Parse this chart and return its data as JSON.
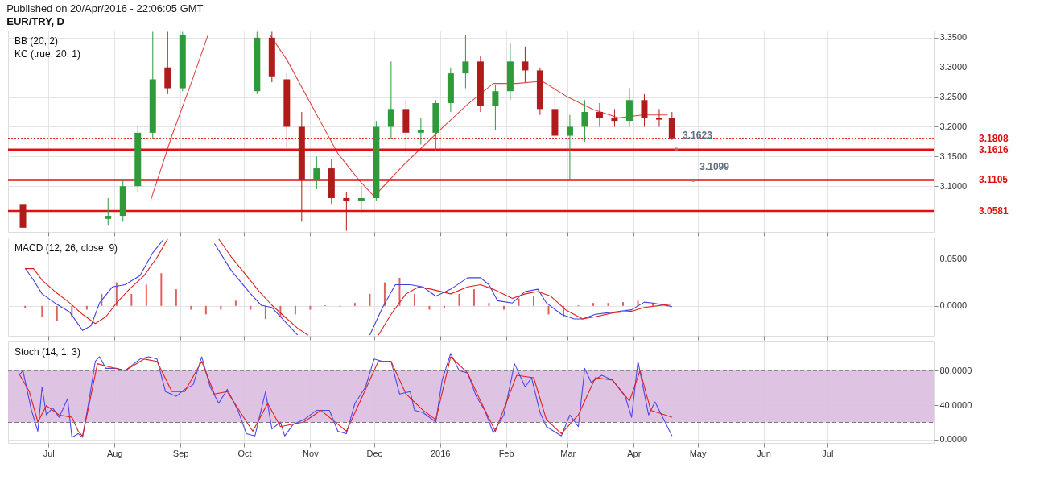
{
  "chart_data": [
    {
      "type": "candlestick",
      "title": "EUR/TRY, D",
      "subtitle": "Published on 20/Apr/2016 - 22:06:05 GMT",
      "annotations": [
        "BB (20, 2)",
        "KC (true, 20, 1)",
        {
          "text": "3.1623",
          "x": "2016-04-21",
          "y": 3.1623
        },
        {
          "text": "3.1099",
          "x": "2016-04-29",
          "y": 3.1099
        }
      ],
      "x": [
        "2015-06-19",
        "2015-07-29",
        "2015-08-05",
        "2015-08-12",
        "2015-08-19",
        "2015-08-26",
        "2015-09-02",
        "2015-10-07",
        "2015-10-14",
        "2015-10-21",
        "2015-10-28",
        "2015-11-04",
        "2015-11-11",
        "2015-11-18",
        "2015-11-25",
        "2015-12-02",
        "2015-12-09",
        "2015-12-16",
        "2015-12-23",
        "2015-12-30",
        "2016-01-06",
        "2016-01-13",
        "2016-01-20",
        "2016-01-27",
        "2016-02-03",
        "2016-02-10",
        "2016-02-17",
        "2016-02-24",
        "2016-03-02",
        "2016-03-09",
        "2016-03-16",
        "2016-03-23",
        "2016-03-30",
        "2016-04-06",
        "2016-04-13",
        "2016-04-19"
      ],
      "ohlc": [
        [
          3.07,
          3.085,
          3.025,
          3.03
        ],
        [
          3.045,
          3.08,
          3.035,
          3.05
        ],
        [
          3.05,
          3.11,
          3.04,
          3.1
        ],
        [
          3.1,
          3.2,
          3.09,
          3.19
        ],
        [
          3.19,
          3.36,
          3.18,
          3.28
        ],
        [
          3.3,
          3.36,
          3.255,
          3.265
        ],
        [
          3.265,
          3.36,
          3.26,
          3.355
        ],
        [
          3.26,
          3.36,
          3.255,
          3.35
        ],
        [
          3.35,
          3.36,
          3.275,
          3.285
        ],
        [
          3.28,
          3.29,
          3.165,
          3.2
        ],
        [
          3.2,
          3.225,
          3.04,
          3.11
        ],
        [
          3.11,
          3.15,
          3.095,
          3.13
        ],
        [
          3.13,
          3.145,
          3.07,
          3.08
        ],
        [
          3.08,
          3.09,
          3.025,
          3.075
        ],
        [
          3.075,
          3.1,
          3.055,
          3.08
        ],
        [
          3.08,
          3.21,
          3.075,
          3.2
        ],
        [
          3.2,
          3.31,
          3.18,
          3.23
        ],
        [
          3.23,
          3.245,
          3.155,
          3.19
        ],
        [
          3.19,
          3.215,
          3.17,
          3.195
        ],
        [
          3.19,
          3.245,
          3.16,
          3.24
        ],
        [
          3.24,
          3.3,
          3.225,
          3.29
        ],
        [
          3.29,
          3.355,
          3.265,
          3.31
        ],
        [
          3.31,
          3.32,
          3.225,
          3.235
        ],
        [
          3.235,
          3.27,
          3.195,
          3.26
        ],
        [
          3.26,
          3.34,
          3.245,
          3.31
        ],
        [
          3.31,
          3.335,
          3.275,
          3.295
        ],
        [
          3.295,
          3.3,
          3.22,
          3.23
        ],
        [
          3.23,
          3.27,
          3.17,
          3.185
        ],
        [
          3.185,
          3.22,
          3.11,
          3.2
        ],
        [
          3.2,
          3.245,
          3.175,
          3.225
        ],
        [
          3.225,
          3.24,
          3.2,
          3.215
        ],
        [
          3.215,
          3.23,
          3.2,
          3.21
        ],
        [
          3.21,
          3.265,
          3.2,
          3.245
        ],
        [
          3.245,
          3.255,
          3.2,
          3.215
        ],
        [
          3.215,
          3.23,
          3.2,
          3.212
        ],
        [
          3.215,
          3.225,
          3.178,
          3.1808
        ]
      ],
      "colors": [
        "#b01c1c",
        "#2e9a3a",
        "#2e9a3a",
        "#2e9a3a",
        "#2e9a3a",
        "#b01c1c",
        "#2e9a3a",
        "#2e9a3a",
        "#b01c1c",
        "#b01c1c",
        "#b01c1c",
        "#2e9a3a",
        "#b01c1c",
        "#b01c1c",
        "#2e9a3a",
        "#2e9a3a",
        "#2e9a3a",
        "#b01c1c",
        "#2e9a3a",
        "#2e9a3a",
        "#2e9a3a",
        "#2e9a3a",
        "#b01c1c",
        "#2e9a3a",
        "#2e9a3a",
        "#b01c1c",
        "#b01c1c",
        "#b01c1c",
        "#2e9a3a",
        "#2e9a3a",
        "#b01c1c",
        "#b01c1c",
        "#2e9a3a",
        "#b01c1c",
        "#b01c1c",
        "#b01c1c"
      ],
      "series": [
        {
          "type": "line",
          "color": "#e04848",
          "x": [
            "2015-08-18",
            "2015-08-28",
            "2015-09-06",
            "2015-09-14",
            "2015-09-30",
            "2015-10-13",
            "2015-10-21",
            "2015-11-02",
            "2015-11-14",
            "2015-11-24",
            "2015-12-01",
            "2015-12-15",
            "2016-01-02",
            "2016-01-14",
            "2016-01-26",
            "2016-02-06",
            "2016-02-18",
            "2016-03-01",
            "2016-03-13",
            "2016-03-25",
            "2016-04-05",
            "2016-04-17"
          ],
          "values": [
            3.076,
            3.185,
            3.273,
            3.355,
            null,
            3.355,
            3.313,
            3.234,
            3.155,
            3.11,
            3.083,
            3.136,
            3.198,
            3.238,
            3.273,
            3.273,
            3.277,
            3.25,
            3.229,
            3.215,
            3.22,
            3.22
          ]
        }
      ],
      "ref_lines": [
        {
          "axis": "y",
          "value": 3.1808,
          "label": "3.1808",
          "color": "#e01010",
          "line_style": "dotted"
        },
        {
          "axis": "y",
          "value": 3.1616,
          "label": "3.1616",
          "color": "#e01010",
          "line_style": "solid"
        },
        {
          "axis": "y",
          "value": 3.1105,
          "label": "3.1105",
          "color": "#e01010",
          "line_style": "solid"
        },
        {
          "axis": "y",
          "value": 3.0581,
          "label": "3.0581",
          "color": "#e01010",
          "line_style": "solid"
        }
      ],
      "xlim": [
        "2015-06-12",
        "2016-08-20"
      ],
      "xticks": [
        {
          "value": "2015-07-01",
          "label": null
        },
        {
          "value": "2015-08-01",
          "label": null
        },
        {
          "value": "2015-09-01",
          "label": null
        },
        {
          "value": "2015-10-01",
          "label": null
        },
        {
          "value": "2015-11-01",
          "label": null
        },
        {
          "value": "2015-12-01",
          "label": null
        },
        {
          "value": "2016-01-01",
          "label": null
        },
        {
          "value": "2016-02-01",
          "label": null
        },
        {
          "value": "2016-03-01",
          "label": null
        },
        {
          "value": "2016-04-01",
          "label": null
        },
        {
          "value": "2016-05-01",
          "label": null
        },
        {
          "value": "2016-06-01",
          "label": null
        },
        {
          "value": "2016-07-01",
          "label": null
        }
      ],
      "ylim": [
        3.023,
        3.362
      ],
      "yticks": [
        {
          "value": 3.1,
          "label": "3.1000"
        },
        {
          "value": 3.15,
          "label": "3.1500"
        },
        {
          "value": 3.2,
          "label": "3.2000"
        },
        {
          "value": 3.25,
          "label": "3.2500"
        },
        {
          "value": 3.3,
          "label": "3.3000"
        },
        {
          "value": 3.35,
          "label": "3.3500"
        }
      ],
      "grid": true,
      "tick_labels": "y"
    },
    {
      "type": "line",
      "annotations": [
        "MACD (12, 26, close, 9)"
      ],
      "series": [
        {
          "type": "bar",
          "color": "#e06060",
          "x": [
            "2015-06-20",
            "2015-06-28",
            "2015-07-05",
            "2015-07-12",
            "2015-07-19",
            "2015-07-26",
            "2015-08-02",
            "2015-08-09",
            "2015-08-16",
            "2015-08-23",
            "2015-08-30",
            "2015-09-06",
            "2015-09-13",
            "2015-09-20",
            "2015-09-27",
            "2015-10-04",
            "2015-10-11",
            "2015-10-18",
            "2015-10-25",
            "2015-11-01",
            "2015-11-08",
            "2015-11-15",
            "2015-11-22",
            "2015-11-29",
            "2015-12-06",
            "2015-12-13",
            "2015-12-20",
            "2015-12-27",
            "2016-01-03",
            "2016-01-10",
            "2016-01-17",
            "2016-01-24",
            "2016-01-31",
            "2016-02-07",
            "2016-02-14",
            "2016-02-21",
            "2016-02-28",
            "2016-03-06",
            "2016-03-13",
            "2016-03-20",
            "2016-03-27",
            "2016-04-03",
            "2016-04-10"
          ],
          "values": [
            -0.002,
            -0.0114,
            -0.0162,
            -0.0114,
            -0.004,
            0.0127,
            0.0248,
            0.0127,
            0.0224,
            0.0345,
            0.0176,
            -0.004,
            -0.009,
            -0.004,
            0.0055,
            -0.004,
            -0.0138,
            -0.0114,
            -0.009,
            -0.004,
            0.0007,
            -0.0007,
            0.0031,
            0.0127,
            0.0248,
            0.0297,
            0.0127,
            -0.004,
            -0.002,
            0.0127,
            0.0176,
            0.0031,
            -0.004,
            0.0079,
            0.0103,
            -0.009,
            -0.0114,
            0.0007,
            0.0031,
            0.0031,
            0.004,
            0.0055,
            0.0031
          ]
        },
        {
          "type": "line",
          "color": "#4040e0",
          "x": [
            "2015-06-20",
            "2015-06-24",
            "2015-06-28",
            "2015-07-04",
            "2015-07-11",
            "2015-07-17",
            "2015-07-21",
            "2015-07-25",
            "2015-07-31",
            "2015-08-06",
            "2015-08-13",
            "2015-08-19",
            "2015-08-24",
            "2015-09-05",
            "2015-09-17",
            "2015-09-25",
            "2015-10-04",
            "2015-10-09",
            "2015-10-14",
            "2015-10-20",
            "2015-10-26",
            "2015-11-12",
            "2015-11-29",
            "2015-12-05",
            "2015-12-11",
            "2015-12-18",
            "2015-12-24",
            "2015-12-30",
            "2016-01-06",
            "2016-01-14",
            "2016-01-20",
            "2016-01-24",
            "2016-01-28",
            "2016-02-04",
            "2016-02-10",
            "2016-02-16",
            "2016-02-20",
            "2016-02-27",
            "2016-03-04",
            "2016-03-08",
            "2016-03-14",
            "2016-03-22",
            "2016-03-31",
            "2016-04-06",
            "2016-04-10",
            "2016-04-19"
          ],
          "values": [
            0.04,
            0.027,
            0.0127,
            0.0031,
            -0.0066,
            -0.0258,
            -0.021,
            0.0031,
            0.02,
            0.0224,
            0.032,
            0.0561,
            0.07,
            null,
            0.0657,
            0.0369,
            0.0127,
            0.0007,
            -0.0017,
            -0.0162,
            -0.0307,
            null,
            -0.0307,
            -0.0017,
            0.0224,
            0.0224,
            0.02,
            0.0103,
            0.0176,
            0.0297,
            0.0297,
            0.0224,
            0.0055,
            0.0031,
            0.0152,
            0.0176,
            0.0031,
            -0.0089,
            -0.0138,
            -0.0138,
            -0.0089,
            -0.0066,
            -0.0041,
            0.004,
            0.0031,
            -0.0007
          ]
        },
        {
          "type": "line",
          "color": "#e02020",
          "x": [
            "2015-06-20",
            "2015-06-24",
            "2015-06-28",
            "2015-07-04",
            "2015-07-11",
            "2015-07-17",
            "2015-07-23",
            "2015-07-28",
            "2015-08-02",
            "2015-08-08",
            "2015-08-15",
            "2015-08-21",
            "2015-08-26",
            "2015-09-08",
            "2015-09-19",
            "2015-09-25",
            "2015-10-02",
            "2015-10-08",
            "2015-10-14",
            "2015-10-20",
            "2015-10-26",
            "2015-10-31",
            "2015-11-17",
            "2015-12-03",
            "2015-12-09",
            "2015-12-16",
            "2015-12-22",
            "2015-12-28",
            "2016-01-06",
            "2016-01-14",
            "2016-01-20",
            "2016-01-26",
            "2016-02-04",
            "2016-02-10",
            "2016-02-16",
            "2016-02-22",
            "2016-02-29",
            "2016-03-08",
            "2016-03-14",
            "2016-03-22",
            "2016-03-31",
            "2016-04-06",
            "2016-04-19"
          ],
          "values": [
            0.0393,
            0.0393,
            0.0272,
            0.0152,
            0.0031,
            -0.0089,
            -0.0186,
            -0.0114,
            0.0031,
            0.0176,
            0.032,
            0.0513,
            0.0706,
            null,
            0.0706,
            0.0513,
            0.032,
            0.0152,
            0.0007,
            -0.0114,
            -0.0234,
            -0.031,
            null,
            -0.031,
            -0.0089,
            0.0127,
            0.02,
            0.0176,
            0.0127,
            0.02,
            0.0224,
            0.0176,
            0.0079,
            0.0127,
            0.0152,
            0.0103,
            -0.0041,
            -0.0138,
            -0.0114,
            -0.0075,
            -0.0056,
            -0.0017,
            0.0021
          ]
        }
      ],
      "xlim": [
        "2015-06-12",
        "2016-08-20"
      ],
      "xticks": [
        {
          "value": "2015-07-01",
          "label": null
        },
        {
          "value": "2015-08-01",
          "label": null
        },
        {
          "value": "2015-09-01",
          "label": null
        },
        {
          "value": "2015-10-01",
          "label": null
        },
        {
          "value": "2015-11-01",
          "label": null
        },
        {
          "value": "2015-12-01",
          "label": null
        },
        {
          "value": "2016-01-01",
          "label": null
        },
        {
          "value": "2016-02-01",
          "label": null
        },
        {
          "value": "2016-03-01",
          "label": null
        },
        {
          "value": "2016-04-01",
          "label": null
        },
        {
          "value": "2016-05-01",
          "label": null
        },
        {
          "value": "2016-06-01",
          "label": null
        },
        {
          "value": "2016-07-01",
          "label": null
        }
      ],
      "ylim": [
        -0.0316,
        0.0721
      ],
      "yticks": [
        {
          "value": 0,
          "label": "0.0000"
        },
        {
          "value": 0.05,
          "label": "0.0500"
        }
      ],
      "grid": true,
      "tick_labels": "y"
    },
    {
      "type": "line",
      "annotations": [
        "Stoch (14, 1, 3)"
      ],
      "bands": [
        {
          "axis": "y",
          "from": 20,
          "to": 80,
          "color": "#dcbcdf"
        }
      ],
      "ref_lines": [
        {
          "axis": "y",
          "value": 20,
          "color": "#777777",
          "line_style": "dashed"
        },
        {
          "axis": "y",
          "value": 80,
          "color": "#777777",
          "line_style": "dashed"
        }
      ],
      "series": [
        {
          "type": "line",
          "color": "#4a4ae8",
          "x": [
            "2015-06-17",
            "2015-06-19",
            "2015-06-23",
            "2015-06-26",
            "2015-06-28",
            "2015-06-30",
            "2015-07-03",
            "2015-07-06",
            "2015-07-10",
            "2015-07-12",
            "2015-07-15",
            "2015-07-17",
            "2015-07-20",
            "2015-07-23",
            "2015-07-25",
            "2015-07-28",
            "2015-08-02",
            "2015-08-06",
            "2015-08-13",
            "2015-08-17",
            "2015-08-21",
            "2015-08-25",
            "2015-08-30",
            "2015-09-03",
            "2015-09-07",
            "2015-09-11",
            "2015-09-15",
            "2015-09-19",
            "2015-09-23",
            "2015-09-28",
            "2015-10-02",
            "2015-10-06",
            "2015-10-11",
            "2015-10-14",
            "2015-10-18",
            "2015-10-20",
            "2015-10-24",
            "2015-10-29",
            "2015-11-04",
            "2015-11-10",
            "2015-11-14",
            "2015-11-18",
            "2015-11-22",
            "2015-11-27",
            "2015-12-01",
            "2015-12-05",
            "2015-12-09",
            "2015-12-13",
            "2015-12-18",
            "2015-12-20",
            "2015-12-24",
            "2015-12-30",
            "2016-01-02",
            "2016-01-06",
            "2016-01-10",
            "2016-01-14",
            "2016-01-18",
            "2016-01-22",
            "2016-01-26",
            "2016-01-31",
            "2016-02-05",
            "2016-02-10",
            "2016-02-13",
            "2016-02-17",
            "2016-02-20",
            "2016-02-27",
            "2016-03-02",
            "2016-03-06",
            "2016-03-09",
            "2016-03-12",
            "2016-03-17",
            "2016-03-22",
            "2016-03-28",
            "2016-03-31",
            "2016-04-03",
            "2016-04-08",
            "2016-04-11",
            "2016-04-19"
          ],
          "values": [
            74.6,
            80,
            34.1,
            9.7,
            61.1,
            28.7,
            36.8,
            26,
            47.6,
            2.7,
            7,
            2.7,
            44.9,
            90.8,
            96.2,
            82.7,
            82.7,
            80,
            93.5,
            96.2,
            93.5,
            55.7,
            50.3,
            58.4,
            63.8,
            96.2,
            61.1,
            42.2,
            58.4,
            34.1,
            7,
            4.3,
            55.7,
            12.4,
            20.5,
            4.3,
            17.8,
            23.2,
            34.1,
            34.1,
            9.7,
            7,
            42.2,
            61.1,
            93.5,
            90.8,
            90.8,
            52.9,
            55.7,
            34.1,
            31.4,
            20.5,
            69.2,
            100,
            80,
            77.3,
            50.3,
            34.1,
            8.1,
            28.7,
            88.1,
            61.1,
            71.9,
            31.4,
            15.1,
            4.3,
            28.7,
            15.1,
            82.7,
            66.5,
            74.6,
            69.2,
            50.3,
            26,
            90.8,
            28.7,
            43.8,
            4.3
          ]
        },
        {
          "type": "line",
          "color": "#e02020",
          "x": [
            "2015-06-17",
            "2015-06-22",
            "2015-06-26",
            "2015-06-30",
            "2015-07-06",
            "2015-07-12",
            "2015-07-15",
            "2015-07-17",
            "2015-07-20",
            "2015-07-24",
            "2015-07-28",
            "2015-08-06",
            "2015-08-15",
            "2015-08-21",
            "2015-08-28",
            "2015-09-03",
            "2015-09-11",
            "2015-09-17",
            "2015-09-23",
            "2015-09-30",
            "2015-10-05",
            "2015-10-12",
            "2015-10-18",
            "2015-10-29",
            "2015-11-06",
            "2015-11-14",
            "2015-11-18",
            "2015-11-27",
            "2015-12-03",
            "2015-12-09",
            "2015-12-16",
            "2015-12-24",
            "2015-12-30",
            "2016-01-06",
            "2016-01-14",
            "2016-01-20",
            "2016-01-27",
            "2016-02-06",
            "2016-02-14",
            "2016-02-20",
            "2016-02-27",
            "2016-03-06",
            "2016-03-14",
            "2016-03-22",
            "2016-03-30",
            "2016-04-04",
            "2016-04-09",
            "2016-04-19"
          ],
          "values": [
            77.3,
            55.7,
            20.5,
            39.5,
            28.7,
            26,
            9.7,
            4.3,
            39.5,
            88.1,
            85.4,
            80,
            93.5,
            90.8,
            55.7,
            55.7,
            90.8,
            53,
            55.7,
            28.7,
            9.7,
            42.2,
            15.1,
            20.5,
            34.1,
            17.8,
            9.7,
            58.4,
            90.8,
            90.8,
            53,
            34.1,
            23.2,
            96.2,
            77.3,
            44.9,
            9.7,
            74.6,
            71.9,
            23.2,
            7,
            28.7,
            71.9,
            69.2,
            44.9,
            80,
            34.1,
            26
          ]
        }
      ],
      "xlim": [
        "2015-06-12",
        "2016-08-20"
      ],
      "xticks": [
        {
          "value": "2015-07-01",
          "label": "Jul"
        },
        {
          "value": "2015-08-01",
          "label": "Aug"
        },
        {
          "value": "2015-09-01",
          "label": "Sep"
        },
        {
          "value": "2015-10-01",
          "label": "Oct"
        },
        {
          "value": "2015-11-01",
          "label": "Nov"
        },
        {
          "value": "2015-12-01",
          "label": "Dec"
        },
        {
          "value": "2016-01-01",
          "label": "2016"
        },
        {
          "value": "2016-02-01",
          "label": "Feb"
        },
        {
          "value": "2016-03-01",
          "label": "Mar"
        },
        {
          "value": "2016-04-01",
          "label": "Apr"
        },
        {
          "value": "2016-05-01",
          "label": "May"
        },
        {
          "value": "2016-06-01",
          "label": "Jun"
        },
        {
          "value": "2016-07-01",
          "label": "Jul"
        }
      ],
      "ylim": [
        -3.8,
        113.9
      ],
      "yticks": [
        {
          "value": 0,
          "label": "0.0000"
        },
        {
          "value": 40,
          "label": "40.0000"
        },
        {
          "value": 80,
          "label": "80.0000"
        }
      ],
      "grid": true
    }
  ]
}
